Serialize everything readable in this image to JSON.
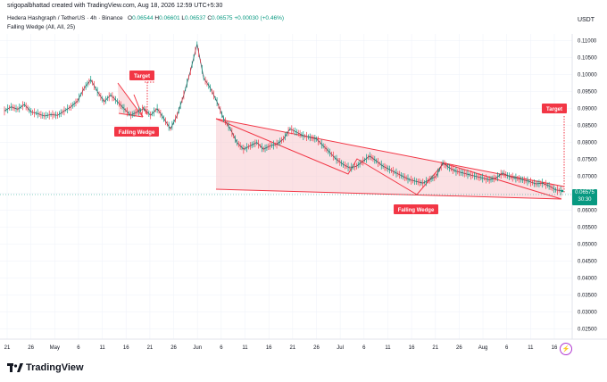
{
  "header": {
    "author_line": "srigopalbhattad created with TradingView.com, Aug 18, 2026 12:59 UTC+5:30",
    "currency": "USDT"
  },
  "legend": {
    "symbol": "Hedera Hashgraph / TetherUS · 4h · Binance",
    "open_label": "O",
    "open": "0.06544",
    "high_label": "H",
    "high": "0.06601",
    "low_label": "L",
    "low": "0.06537",
    "close_label": "C",
    "close": "0.06575",
    "change": "+0.00030 (+0.46%)",
    "indicator": "Falling Wedge (All, All, 25)"
  },
  "price_badge": {
    "price": "0.06575",
    "countdown": "30:30"
  },
  "annotations": {
    "target_1": "Target",
    "falling_wedge_1": "Falling Wedge",
    "falling_wedge_2": "Falling Wedge",
    "target_2": "Target"
  },
  "footer": {
    "brand": "TradingView"
  },
  "colors": {
    "up": "#089981",
    "wedge": "#f23645",
    "wedge_fill": "#f8c9cd",
    "badge": "#089981"
  },
  "chart_data": {
    "type": "line",
    "title": "",
    "ylim": [
      0.022,
      0.112
    ],
    "y_ticks": [
      "0.11000",
      "0.10500",
      "0.10000",
      "0.09500",
      "0.09000",
      "0.08500",
      "0.08000",
      "0.07500",
      "0.07000",
      "0.06500",
      "0.06000",
      "0.05500",
      "0.05000",
      "0.04500",
      "0.04000",
      "0.03500",
      "0.03000",
      "0.02500"
    ],
    "x_ticks": [
      "21",
      "26",
      "May",
      "6",
      "11",
      "16",
      "21",
      "26",
      "Jun",
      "6",
      "11",
      "16",
      "21",
      "26",
      "Jul",
      "6",
      "11",
      "16",
      "21",
      "26",
      "Aug",
      "6",
      "11",
      "16"
    ],
    "series": [
      {
        "values": [
          0.0893,
          0.0905,
          0.0898,
          0.0912,
          0.089,
          0.0885,
          0.0878,
          0.0882,
          0.088,
          0.0893,
          0.0905,
          0.0922,
          0.096,
          0.0985,
          0.095,
          0.092,
          0.094,
          0.092,
          0.09,
          0.088,
          0.089,
          0.09,
          0.088,
          0.09,
          0.087,
          0.084,
          0.088,
          0.094,
          0.101,
          0.109,
          0.099,
          0.096,
          0.092,
          0.087,
          0.084,
          0.08,
          0.078,
          0.079,
          0.08,
          0.078,
          0.079,
          0.0795,
          0.081,
          0.084,
          0.083,
          0.082,
          0.0815,
          0.081,
          0.079,
          0.077,
          0.075,
          0.0735,
          0.0725,
          0.073,
          0.0745,
          0.076,
          0.0745,
          0.073,
          0.072,
          0.071,
          0.07,
          0.069,
          0.0685,
          0.068,
          0.069,
          0.07,
          0.074,
          0.0725,
          0.0715,
          0.071,
          0.0705,
          0.07,
          0.0695,
          0.069,
          0.0695,
          0.071,
          0.07,
          0.0695,
          0.069,
          0.0685,
          0.0678,
          0.068,
          0.0672,
          0.066,
          0.0657
        ]
      }
    ]
  }
}
